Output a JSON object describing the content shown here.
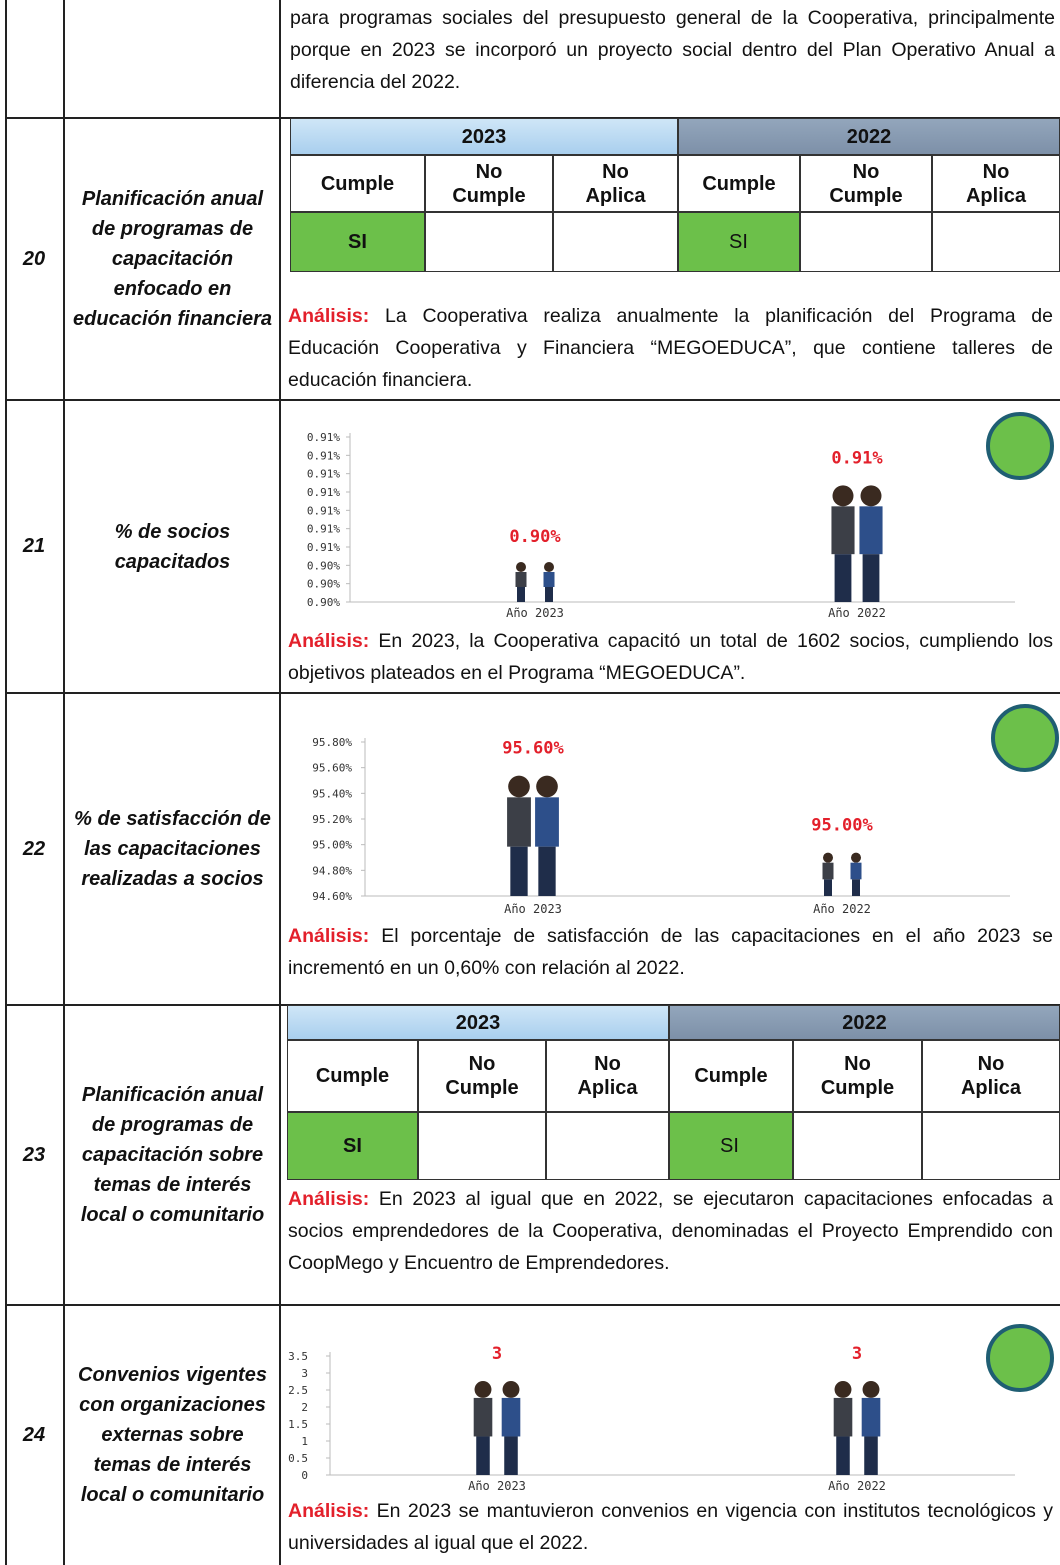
{
  "rows": [
    {
      "text": "para programas sociales del presupuesto general de la Cooperativa, principalmente porque en 2023 se incorporó un proyecto social dentro del Plan Operativo Anual a diferencia del  2022."
    },
    {
      "number": "20",
      "indicator": "Planificación anual de programas de capacitación enfocado en educación financiera",
      "compliance": {
        "years": [
          "2023",
          "2022"
        ],
        "columns": [
          "Cumple",
          "No Cumple",
          "No Aplica"
        ],
        "answers": [
          "SI",
          "SI"
        ]
      },
      "analysis_label": "Análisis:",
      "analysis": "La Cooperativa realiza anualmente la planificación del Programa de Educación Cooperativa y Financiera “MEGOEDUCA”, que contiene talleres de educación financiera."
    },
    {
      "number": "21",
      "indicator": "% de socios capacitados",
      "chart": {
        "categories": [
          "Año 2023",
          "Año 2022"
        ],
        "values": [
          0.9045,
          0.9088
        ],
        "value_labels": [
          "0.90%",
          "0.91%"
        ],
        "ticks": [
          {
            "value": 0.902,
            "label": "0.90%"
          },
          {
            "value": 0.903,
            "label": "0.90%"
          },
          {
            "value": 0.904,
            "label": "0.90%"
          },
          {
            "value": 0.905,
            "label": "0.91%"
          },
          {
            "value": 0.906,
            "label": "0.91%"
          },
          {
            "value": 0.907,
            "label": "0.91%"
          },
          {
            "value": 0.908,
            "label": "0.91%"
          },
          {
            "value": 0.909,
            "label": "0.91%"
          },
          {
            "value": 0.91,
            "label": "0.91%"
          },
          {
            "value": 0.911,
            "label": "0.91%"
          }
        ]
      },
      "analysis_label": "Análisis:",
      "analysis": "En 2023, la Cooperativa capacitó un total de 1602 socios, cumpliendo los objetivos plateados en el Programa “MEGOEDUCA”."
    },
    {
      "number": "22",
      "indicator": "% de satisfacción de las capacitaciones realizadas a socios",
      "chart": {
        "categories": [
          "Año 2023",
          "Año 2022"
        ],
        "values": [
          95.6,
          95.0
        ],
        "value_labels": [
          "95.60%",
          "95.00%"
        ],
        "ticks": [
          {
            "value": 94.6,
            "label": "94.60%"
          },
          {
            "value": 94.8,
            "label": "94.80%"
          },
          {
            "value": 95.0,
            "label": "95.00%"
          },
          {
            "value": 95.2,
            "label": "95.20%"
          },
          {
            "value": 95.4,
            "label": "95.40%"
          },
          {
            "value": 95.6,
            "label": "95.60%"
          },
          {
            "value": 95.8,
            "label": "95.80%"
          }
        ]
      },
      "analysis_label": "Análisis:",
      "analysis": "El porcentaje de satisfacción de las capacitaciones en el año 2023 se incrementó en un 0,60% con relación al 2022."
    },
    {
      "number": "23",
      "indicator": "Planificación anual de programas de capacitación sobre temas de interés local o comunitario",
      "compliance": {
        "years": [
          "2023",
          "2022"
        ],
        "columns": [
          "Cumple",
          "No Cumple",
          "No Aplica"
        ],
        "answers": [
          "SI",
          "SI"
        ]
      },
      "analysis_label": "Análisis:",
      "analysis": "En 2023 al igual que en 2022, se ejecutaron capacitaciones enfocadas a socios emprendedores de la Cooperativa, denominadas el Proyecto Emprendido con CoopMego y Encuentro de Emprendedores."
    },
    {
      "number": "24",
      "indicator": "Convenios vigentes con organizaciones externas sobre temas de interés local o comunitario",
      "chart": {
        "categories": [
          "Año 2023",
          "Año 2022"
        ],
        "values": [
          3,
          3
        ],
        "ticks": [
          0,
          0.5,
          1,
          1.5,
          2,
          2.5,
          3,
          3.5
        ]
      },
      "analysis_label": "Análisis:",
      "analysis": "En 2023 se mantuvieron convenios en vigencia con institutos tecnológicos y universidades al igual que el 2022."
    }
  ]
}
